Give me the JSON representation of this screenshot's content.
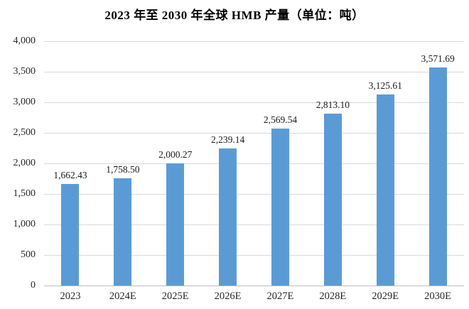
{
  "title": "2023 年至 2030 年全球 HMB 产量（单位：吨）",
  "chart_data": {
    "type": "bar",
    "title": "2023 年至 2030 年全球 HMB 产量（单位：吨）",
    "categories": [
      "2023",
      "2024E",
      "2025E",
      "2026E",
      "2027E",
      "2028E",
      "2029E",
      "2030E"
    ],
    "values": [
      1662.43,
      1758.5,
      2000.27,
      2239.14,
      2569.54,
      2813.1,
      3125.61,
      3571.69
    ],
    "value_labels": [
      "1,662.43",
      "1,758.50",
      "2,000.27",
      "2,239.14",
      "2,569.54",
      "2,813.10",
      "3,125.61",
      "3,571.69"
    ],
    "xlabel": "",
    "ylabel": "",
    "ylim": [
      0,
      4000
    ],
    "ytick_step": 500,
    "ytick_labels": [
      "0",
      "500",
      "1,000",
      "1,500",
      "2,000",
      "2,500",
      "3,000",
      "3,500",
      "4,000"
    ],
    "grid": true,
    "legend_position": "none",
    "bar_color": "#5B9BD5",
    "gridline_color": "#D9D9D9",
    "axis_line_color": "#BFBFBF",
    "label_color": "#262626",
    "title_color": "#000000"
  }
}
